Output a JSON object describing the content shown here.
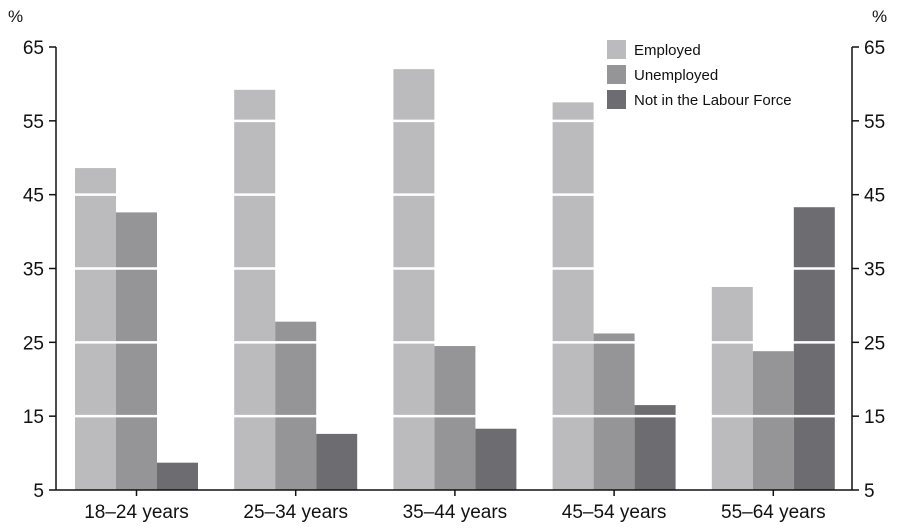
{
  "chart_data": {
    "type": "bar",
    "y_unit_left": "%",
    "y_unit_right": "%",
    "ylim": [
      5,
      65
    ],
    "yticks": [
      5,
      15,
      25,
      35,
      45,
      55,
      65
    ],
    "grid": "white horizontal lines drawn over bars",
    "legend_position": "top-right",
    "categories": [
      "18–24 years",
      "25–34 years",
      "35–44 years",
      "45–54 years",
      "55–64 years"
    ],
    "series": [
      {
        "name": "Employed",
        "color": "#bbbbbe",
        "values": [
          48.6,
          59.2,
          62.0,
          57.5,
          32.5
        ]
      },
      {
        "name": "Unemployed",
        "color": "#959598",
        "values": [
          42.6,
          27.8,
          24.5,
          26.2,
          23.8
        ]
      },
      {
        "name": "Not in the Labour Force",
        "color": "#6d6d71",
        "values": [
          8.7,
          12.6,
          13.3,
          16.5,
          43.3
        ]
      }
    ]
  }
}
